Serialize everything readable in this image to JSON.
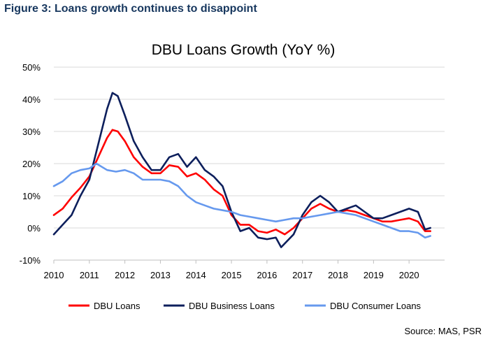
{
  "figure_title": "Figure 3: Loans growth continues to disappoint",
  "source": "Source: MAS, PSR",
  "chart_data": {
    "type": "line",
    "title": "DBU Loans Growth (YoY %)",
    "xlabel": "",
    "ylabel": "",
    "xlim": [
      2010,
      2020.6
    ],
    "ylim": [
      -10,
      50
    ],
    "x_ticks": [
      "2010",
      "2011",
      "2012",
      "2013",
      "2014",
      "2015",
      "2016",
      "2017",
      "2018",
      "2019",
      "2020"
    ],
    "y_ticks": [
      "50%",
      "40%",
      "30%",
      "20%",
      "10%",
      "0%",
      "-10%"
    ],
    "grid": "horizontal",
    "legend_position": "bottom",
    "series": [
      {
        "name": "DBU Loans",
        "color": "#ff0000",
        "points": [
          [
            2010,
            4
          ],
          [
            2010.25,
            6
          ],
          [
            2010.5,
            9.5
          ],
          [
            2010.75,
            12.5
          ],
          [
            2011,
            16
          ],
          [
            2011.25,
            22
          ],
          [
            2011.5,
            28
          ],
          [
            2011.65,
            30.5
          ],
          [
            2011.8,
            30
          ],
          [
            2012,
            27
          ],
          [
            2012.25,
            22
          ],
          [
            2012.5,
            19
          ],
          [
            2012.75,
            17
          ],
          [
            2013,
            17
          ],
          [
            2013.25,
            19.5
          ],
          [
            2013.5,
            19
          ],
          [
            2013.75,
            16
          ],
          [
            2014,
            17
          ],
          [
            2014.25,
            15
          ],
          [
            2014.5,
            12
          ],
          [
            2014.75,
            10
          ],
          [
            2015,
            4
          ],
          [
            2015.25,
            1
          ],
          [
            2015.5,
            1
          ],
          [
            2015.75,
            -1
          ],
          [
            2016,
            -1.5
          ],
          [
            2016.25,
            -0.5
          ],
          [
            2016.5,
            -2
          ],
          [
            2016.75,
            0
          ],
          [
            2017,
            3
          ],
          [
            2017.25,
            6
          ],
          [
            2017.5,
            7.5
          ],
          [
            2017.75,
            6
          ],
          [
            2018,
            5
          ],
          [
            2018.25,
            5.5
          ],
          [
            2018.5,
            5
          ],
          [
            2018.75,
            4
          ],
          [
            2019,
            3
          ],
          [
            2019.25,
            2
          ],
          [
            2019.5,
            2
          ],
          [
            2019.75,
            2.5
          ],
          [
            2020,
            3
          ],
          [
            2020.25,
            2
          ],
          [
            2020.45,
            -1
          ],
          [
            2020.6,
            -1
          ]
        ]
      },
      {
        "name": "DBU Business Loans",
        "color": "#0d1f5c",
        "points": [
          [
            2010,
            -2
          ],
          [
            2010.25,
            1
          ],
          [
            2010.5,
            4
          ],
          [
            2010.75,
            10
          ],
          [
            2011,
            15
          ],
          [
            2011.25,
            26
          ],
          [
            2011.5,
            37
          ],
          [
            2011.65,
            42
          ],
          [
            2011.8,
            41
          ],
          [
            2012,
            35
          ],
          [
            2012.25,
            27
          ],
          [
            2012.5,
            22
          ],
          [
            2012.75,
            18
          ],
          [
            2013,
            18
          ],
          [
            2013.25,
            22
          ],
          [
            2013.5,
            23
          ],
          [
            2013.75,
            19
          ],
          [
            2014,
            22
          ],
          [
            2014.25,
            18
          ],
          [
            2014.5,
            16
          ],
          [
            2014.75,
            13
          ],
          [
            2015,
            5
          ],
          [
            2015.25,
            -1
          ],
          [
            2015.5,
            0
          ],
          [
            2015.75,
            -3
          ],
          [
            2016,
            -3.5
          ],
          [
            2016.25,
            -3
          ],
          [
            2016.4,
            -6
          ],
          [
            2016.75,
            -2
          ],
          [
            2017,
            4
          ],
          [
            2017.25,
            8
          ],
          [
            2017.5,
            10
          ],
          [
            2017.75,
            8
          ],
          [
            2018,
            5
          ],
          [
            2018.25,
            6
          ],
          [
            2018.5,
            7
          ],
          [
            2018.75,
            5
          ],
          [
            2019,
            3
          ],
          [
            2019.25,
            3
          ],
          [
            2019.5,
            4
          ],
          [
            2019.75,
            5
          ],
          [
            2020,
            6
          ],
          [
            2020.25,
            5
          ],
          [
            2020.45,
            -0.5
          ],
          [
            2020.6,
            0
          ]
        ]
      },
      {
        "name": "DBU Consumer Loans",
        "color": "#6699ee",
        "points": [
          [
            2010,
            13
          ],
          [
            2010.25,
            14.5
          ],
          [
            2010.5,
            17
          ],
          [
            2010.75,
            18
          ],
          [
            2011,
            18.5
          ],
          [
            2011.2,
            20
          ],
          [
            2011.5,
            18
          ],
          [
            2011.75,
            17.5
          ],
          [
            2012,
            18
          ],
          [
            2012.25,
            17
          ],
          [
            2012.5,
            15
          ],
          [
            2012.75,
            15
          ],
          [
            2013,
            15
          ],
          [
            2013.25,
            14.5
          ],
          [
            2013.5,
            13
          ],
          [
            2013.75,
            10
          ],
          [
            2014,
            8
          ],
          [
            2014.25,
            7
          ],
          [
            2014.5,
            6
          ],
          [
            2014.75,
            5.5
          ],
          [
            2015,
            5
          ],
          [
            2015.25,
            4
          ],
          [
            2015.5,
            3.5
          ],
          [
            2015.75,
            3
          ],
          [
            2016,
            2.5
          ],
          [
            2016.25,
            2
          ],
          [
            2016.5,
            2.5
          ],
          [
            2016.75,
            3
          ],
          [
            2017,
            3
          ],
          [
            2017.25,
            3.5
          ],
          [
            2017.5,
            4
          ],
          [
            2017.75,
            4.5
          ],
          [
            2018,
            5
          ],
          [
            2018.25,
            4.5
          ],
          [
            2018.5,
            4
          ],
          [
            2018.75,
            3
          ],
          [
            2019,
            2
          ],
          [
            2019.25,
            1
          ],
          [
            2019.5,
            0
          ],
          [
            2019.75,
            -1
          ],
          [
            2020,
            -1
          ],
          [
            2020.25,
            -1.5
          ],
          [
            2020.45,
            -3
          ],
          [
            2020.6,
            -2.5
          ]
        ]
      }
    ]
  }
}
